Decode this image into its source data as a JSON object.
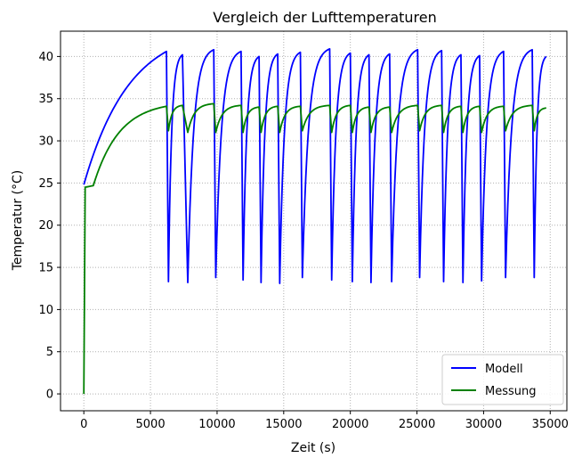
{
  "chart_data": {
    "type": "line",
    "title": "Vergleich der Lufttemperaturen",
    "xlabel": "Zeit (s)",
    "ylabel": "Temperatur (°C)",
    "xlim": [
      -1750,
      36250
    ],
    "ylim": [
      -2,
      43
    ],
    "xticks": [
      0,
      5000,
      10000,
      15000,
      20000,
      25000,
      30000,
      35000
    ],
    "yticks": [
      0,
      5,
      10,
      15,
      20,
      25,
      30,
      35,
      40
    ],
    "grid": true,
    "legend_position": "bottom-right",
    "legend": [
      "Modell",
      "Messung"
    ],
    "series": [
      {
        "name": "Modell",
        "color": "#0000ff",
        "start": {
          "x": 0,
          "y": 24.8
        },
        "ramp_peak": {
          "x": 6200,
          "y": 40.6
        },
        "cycles": [
          {
            "x_on": 6350,
            "y_min": 13.3,
            "x_off": 7400,
            "y_max": 40.2
          },
          {
            "x_on": 7800,
            "y_min": 13.2,
            "x_off": 9750,
            "y_max": 40.8
          },
          {
            "x_on": 9900,
            "y_min": 13.8,
            "x_off": 11800,
            "y_max": 40.6
          },
          {
            "x_on": 11950,
            "y_min": 13.5,
            "x_off": 13150,
            "y_max": 40.0
          },
          {
            "x_on": 13300,
            "y_min": 13.2,
            "x_off": 14550,
            "y_max": 40.3
          },
          {
            "x_on": 14700,
            "y_min": 13.1,
            "x_off": 16250,
            "y_max": 40.5
          },
          {
            "x_on": 16400,
            "y_min": 13.8,
            "x_off": 18450,
            "y_max": 40.9
          },
          {
            "x_on": 18600,
            "y_min": 13.5,
            "x_off": 20000,
            "y_max": 40.4
          },
          {
            "x_on": 20150,
            "y_min": 13.3,
            "x_off": 21400,
            "y_max": 40.2
          },
          {
            "x_on": 21550,
            "y_min": 13.2,
            "x_off": 22950,
            "y_max": 40.3
          },
          {
            "x_on": 23100,
            "y_min": 13.3,
            "x_off": 25050,
            "y_max": 40.8
          },
          {
            "x_on": 25200,
            "y_min": 13.8,
            "x_off": 26850,
            "y_max": 40.7
          },
          {
            "x_on": 27000,
            "y_min": 13.3,
            "x_off": 28300,
            "y_max": 40.2
          },
          {
            "x_on": 28450,
            "y_min": 13.2,
            "x_off": 29700,
            "y_max": 40.1
          },
          {
            "x_on": 29850,
            "y_min": 13.4,
            "x_off": 31500,
            "y_max": 40.6
          },
          {
            "x_on": 31650,
            "y_min": 13.8,
            "x_off": 33650,
            "y_max": 40.8
          },
          {
            "x_on": 33800,
            "y_min": 13.8,
            "x_off": 34700,
            "y_max": 40.0
          }
        ]
      },
      {
        "name": "Messung",
        "color": "#008000",
        "start": {
          "x": 0,
          "y": 0.0
        },
        "jump": {
          "x": 100,
          "y": 24.5
        },
        "ramp_peak": {
          "x": 6200,
          "y": 34.1
        },
        "cycles": [
          {
            "x_on": 6350,
            "y_min": 31.2,
            "x_off": 7400,
            "y_max": 34.2
          },
          {
            "x_on": 7800,
            "y_min": 31.0,
            "x_off": 9750,
            "y_max": 34.4
          },
          {
            "x_on": 9900,
            "y_min": 31.0,
            "x_off": 11800,
            "y_max": 34.2
          },
          {
            "x_on": 11950,
            "y_min": 31.0,
            "x_off": 13150,
            "y_max": 34.0
          },
          {
            "x_on": 13300,
            "y_min": 31.0,
            "x_off": 14550,
            "y_max": 34.1
          },
          {
            "x_on": 14700,
            "y_min": 31.0,
            "x_off": 16250,
            "y_max": 34.1
          },
          {
            "x_on": 16400,
            "y_min": 31.2,
            "x_off": 18450,
            "y_max": 34.2
          },
          {
            "x_on": 18600,
            "y_min": 31.0,
            "x_off": 20000,
            "y_max": 34.2
          },
          {
            "x_on": 20150,
            "y_min": 31.0,
            "x_off": 21400,
            "y_max": 34.0
          },
          {
            "x_on": 21550,
            "y_min": 31.0,
            "x_off": 22950,
            "y_max": 34.0
          },
          {
            "x_on": 23100,
            "y_min": 31.0,
            "x_off": 25050,
            "y_max": 34.2
          },
          {
            "x_on": 25200,
            "y_min": 31.2,
            "x_off": 26850,
            "y_max": 34.2
          },
          {
            "x_on": 27000,
            "y_min": 31.0,
            "x_off": 28300,
            "y_max": 34.1
          },
          {
            "x_on": 28450,
            "y_min": 31.0,
            "x_off": 29700,
            "y_max": 34.1
          },
          {
            "x_on": 29850,
            "y_min": 31.0,
            "x_off": 31500,
            "y_max": 34.1
          },
          {
            "x_on": 31650,
            "y_min": 31.2,
            "x_off": 33650,
            "y_max": 34.2
          },
          {
            "x_on": 33800,
            "y_min": 31.2,
            "x_off": 34700,
            "y_max": 33.9
          }
        ]
      }
    ]
  }
}
